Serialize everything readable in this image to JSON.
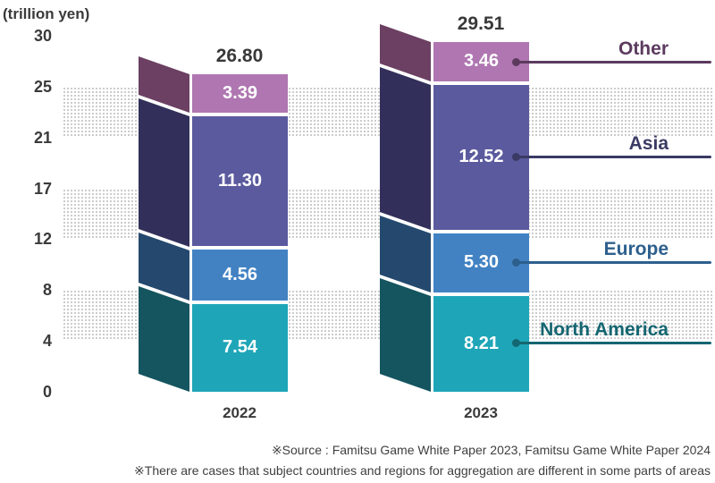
{
  "unit_label": "(trillion yen)",
  "footnotes": [
    "※Source : Famitsu Game White Paper 2023, Famitsu Game White Paper 2024",
    "※There are cases that subject countries and regions for aggregation are different in some parts of areas"
  ],
  "chart_data": {
    "type": "bar",
    "stacked": true,
    "unit": "trillion yen",
    "title": "(trillion yen)",
    "categories": [
      "2022",
      "2023"
    ],
    "totals": [
      "26.80",
      "29.51"
    ],
    "y_ticks": [
      "0",
      "4",
      "8",
      "12",
      "17",
      "21",
      "25",
      "30"
    ],
    "ylim": [
      0,
      30
    ],
    "grid": "alternating dotted bands",
    "legend_position": "right",
    "series": [
      {
        "name": "North America",
        "values": [
          7.54,
          8.21
        ],
        "display": [
          "7.54",
          "8.21"
        ],
        "face_color": "#1ea6b8",
        "side_color": "#14555f",
        "label_color": "#146671"
      },
      {
        "name": "Europe",
        "values": [
          4.56,
          5.3
        ],
        "display": [
          "4.56",
          "5.30"
        ],
        "face_color": "#4282c3",
        "side_color": "#25496e",
        "label_color": "#2d5f8d"
      },
      {
        "name": "Asia",
        "values": [
          11.3,
          12.52
        ],
        "display": [
          "11.30",
          "12.52"
        ],
        "face_color": "#5b5a9e",
        "side_color": "#32305a",
        "label_color": "#3a3a64"
      },
      {
        "name": "Other",
        "values": [
          3.39,
          3.46
        ],
        "display": [
          "3.39",
          "3.46"
        ],
        "face_color": "#af76b1",
        "side_color": "#6b4062",
        "label_color": "#5c3a5e"
      }
    ]
  }
}
